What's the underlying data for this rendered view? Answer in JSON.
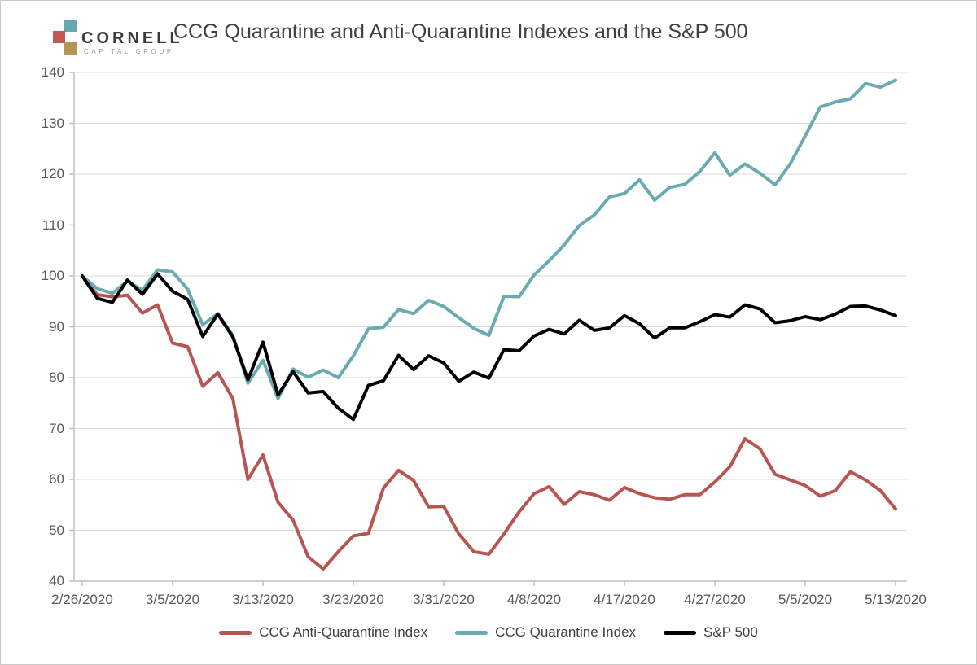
{
  "logo": {
    "line1": "CORNELL",
    "line2": "CAPITAL GROUP",
    "square_colors": {
      "teal": "#67a8ae",
      "red": "#c05a55",
      "gold": "#b29455"
    }
  },
  "title": "CCG Quarantine and Anti-Quarantine Indexes and the S&P 500",
  "colors": {
    "gridline": "#d9d9d9",
    "axis": "#bfbfbf",
    "axis_text": "#595959",
    "title_text": "#404040"
  },
  "chart_data": {
    "type": "line",
    "title": "CCG Quarantine and Anti-Quarantine Indexes and the S&P 500",
    "x_dates": [
      "2/26/2020",
      "2/27/2020",
      "2/28/2020",
      "3/2/2020",
      "3/3/2020",
      "3/4/2020",
      "3/5/2020",
      "3/6/2020",
      "3/9/2020",
      "3/10/2020",
      "3/11/2020",
      "3/12/2020",
      "3/13/2020",
      "3/16/2020",
      "3/17/2020",
      "3/18/2020",
      "3/19/2020",
      "3/20/2020",
      "3/23/2020",
      "3/24/2020",
      "3/25/2020",
      "3/26/2020",
      "3/27/2020",
      "3/30/2020",
      "3/31/2020",
      "4/1/2020",
      "4/2/2020",
      "4/3/2020",
      "4/6/2020",
      "4/7/2020",
      "4/8/2020",
      "4/9/2020",
      "4/13/2020",
      "4/14/2020",
      "4/15/2020",
      "4/16/2020",
      "4/17/2020",
      "4/20/2020",
      "4/21/2020",
      "4/22/2020",
      "4/23/2020",
      "4/24/2020",
      "4/27/2020",
      "4/28/2020",
      "4/29/2020",
      "4/30/2020",
      "5/1/2020",
      "5/4/2020",
      "5/5/2020",
      "5/6/2020",
      "5/7/2020",
      "5/8/2020",
      "5/11/2020",
      "5/12/2020",
      "5/13/2020"
    ],
    "x_tick_labels": [
      "2/26/2020",
      "3/5/2020",
      "3/13/2020",
      "3/23/2020",
      "3/31/2020",
      "4/8/2020",
      "4/17/2020",
      "4/27/2020",
      "5/5/2020",
      "5/13/2020"
    ],
    "x_tick_indices": [
      0,
      6,
      12,
      18,
      24,
      30,
      36,
      42,
      48,
      54
    ],
    "y_ticks": [
      40,
      50,
      60,
      70,
      80,
      90,
      100,
      110,
      120,
      130,
      140
    ],
    "ylim": [
      40,
      140
    ],
    "grid": true,
    "legend_position": "bottom",
    "series": [
      {
        "name": "CCG Anti-Quarantine Index",
        "color": "#b85552",
        "values": [
          100,
          96.3,
          95.9,
          96.2,
          92.7,
          94.3,
          86.8,
          86.1,
          78.3,
          81.0,
          75.9,
          60.0,
          64.8,
          55.5,
          52.0,
          44.8,
          42.4,
          45.8,
          48.9,
          49.4,
          58.3,
          61.8,
          59.8,
          54.6,
          54.7,
          49.3,
          45.8,
          45.3,
          49.3,
          53.6,
          57.2,
          58.6,
          55.1,
          57.6,
          57.0,
          55.9,
          58.4,
          57.2,
          56.4,
          56.1,
          57.0,
          57.0,
          59.5,
          62.5,
          68.0,
          66.0,
          61.0,
          59.9,
          58.8,
          56.7,
          57.8,
          61.5,
          59.9,
          57.8,
          54.2
        ]
      },
      {
        "name": "CCG Quarantine Index",
        "color": "#6aabb0",
        "values": [
          100,
          97.5,
          96.6,
          99.0,
          97.2,
          101.2,
          100.8,
          97.4,
          90.4,
          92.6,
          88.3,
          78.9,
          83.4,
          75.9,
          81.7,
          80.1,
          81.5,
          80.0,
          84.3,
          89.6,
          89.9,
          93.4,
          92.6,
          95.2,
          94.0,
          91.8,
          89.7,
          88.3,
          96.0,
          95.9,
          100.2,
          103.0,
          106.1,
          109.9,
          112.0,
          115.5,
          116.2,
          118.9,
          114.9,
          117.4,
          118.0,
          120.5,
          124.2,
          119.8,
          122.0,
          120.2,
          117.9,
          122.0,
          127.5,
          133.2,
          134.2,
          134.8,
          137.8,
          137.1,
          138.5
        ]
      },
      {
        "name": "S&P 500",
        "color": "#000000",
        "values": [
          100,
          95.6,
          94.8,
          99.2,
          96.4,
          100.4,
          97.0,
          95.4,
          88.1,
          92.5,
          88.0,
          79.6,
          87.0,
          76.6,
          81.2,
          77.0,
          77.3,
          74.0,
          71.8,
          78.5,
          79.4,
          84.4,
          81.6,
          84.3,
          82.9,
          79.3,
          81.1,
          79.9,
          85.5,
          85.3,
          88.2,
          89.5,
          88.6,
          91.3,
          89.3,
          89.8,
          92.2,
          90.6,
          87.8,
          89.8,
          89.8,
          91.0,
          92.4,
          91.9,
          94.3,
          93.5,
          90.8,
          91.2,
          92.0,
          91.4,
          92.5,
          94.0,
          94.1,
          93.3,
          92.2
        ]
      }
    ]
  }
}
